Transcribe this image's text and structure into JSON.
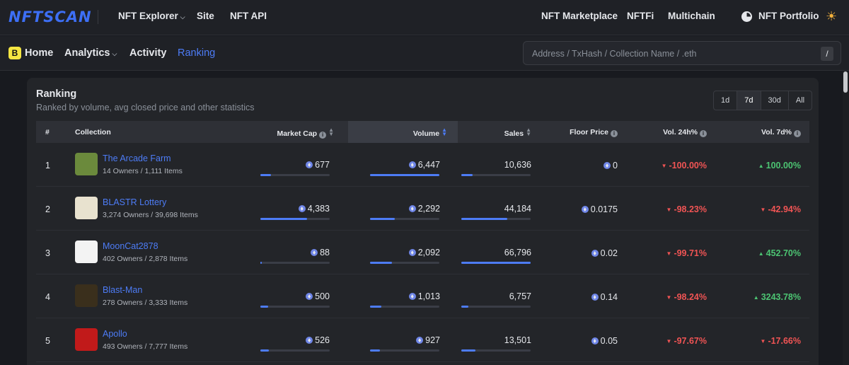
{
  "topbar": {
    "logo": "NFTSCAN",
    "nav_left": [
      {
        "label": "NFT Explorer",
        "has_dropdown": true
      },
      {
        "label": "Site"
      },
      {
        "label": "NFT API"
      }
    ],
    "nav_right": [
      {
        "label": "NFT Marketplace"
      },
      {
        "label": "NFTFi"
      },
      {
        "label": "Multichain"
      },
      {
        "label": "NFT Portfolio",
        "icon": "pie-chart-icon"
      }
    ],
    "theme_icon": "sun-icon"
  },
  "subnav": {
    "chain_icon": "blast-logo-icon",
    "items": [
      {
        "label": "Home"
      },
      {
        "label": "Analytics",
        "has_dropdown": true
      },
      {
        "label": "Activity"
      },
      {
        "label": "Ranking",
        "active": true
      }
    ],
    "search": {
      "placeholder": "Address / TxHash / Collection Name / .eth",
      "value": "",
      "shortcut": "/"
    }
  },
  "ranking": {
    "title": "Ranking",
    "subtitle": "Ranked by volume, avg closed price and other statistics",
    "periods": [
      {
        "label": "1d"
      },
      {
        "label": "7d",
        "active": true
      },
      {
        "label": "30d"
      },
      {
        "label": "All"
      }
    ],
    "columns": [
      "#",
      "Collection",
      "Market Cap",
      "Volume",
      "Sales",
      "Floor Price",
      "Vol. 24h%",
      "Vol. 7d%"
    ],
    "rows": [
      {
        "rank": "1",
        "name": "The Arcade Farm",
        "meta": "14 Owners / 1,111 Items",
        "market_cap": "677",
        "mc_level": 0.15,
        "volume": "6,447",
        "vol_level": 1.0,
        "sales": "10,636",
        "sales_level": 0.16,
        "floor": "0",
        "vol24": "-100.00%",
        "vol24_dir": "down",
        "vol7": "100.00%",
        "vol7_dir": "up",
        "thumb_color": "#6b8a3c"
      },
      {
        "rank": "2",
        "name": "BLASTR Lottery",
        "meta": "3,274 Owners / 39,698 Items",
        "market_cap": "4,383",
        "mc_level": 0.67,
        "volume": "2,292",
        "vol_level": 0.36,
        "sales": "44,184",
        "sales_level": 0.66,
        "floor": "0.0175",
        "vol24": "-98.23%",
        "vol24_dir": "down",
        "vol7": "-42.94%",
        "vol7_dir": "down",
        "thumb_color": "#e8e2cf"
      },
      {
        "rank": "3",
        "name": "MoonCat2878",
        "meta": "402 Owners / 2,878 Items",
        "market_cap": "88",
        "mc_level": 0.02,
        "volume": "2,092",
        "vol_level": 0.32,
        "sales": "66,796",
        "sales_level": 1.0,
        "floor": "0.02",
        "vol24": "-99.71%",
        "vol24_dir": "down",
        "vol7": "452.70%",
        "vol7_dir": "up",
        "thumb_color": "#f3f3f3"
      },
      {
        "rank": "4",
        "name": "Blast-Man",
        "meta": "278 Owners / 3,333 Items",
        "market_cap": "500",
        "mc_level": 0.11,
        "volume": "1,013",
        "vol_level": 0.16,
        "sales": "6,757",
        "sales_level": 0.1,
        "floor": "0.14",
        "vol24": "-98.24%",
        "vol24_dir": "down",
        "vol7": "3243.78%",
        "vol7_dir": "up",
        "thumb_color": "#3a2f1c"
      },
      {
        "rank": "5",
        "name": "Apollo",
        "meta": "493 Owners / 7,777 Items",
        "market_cap": "526",
        "mc_level": 0.12,
        "volume": "927",
        "vol_level": 0.14,
        "sales": "13,501",
        "sales_level": 0.2,
        "floor": "0.05",
        "vol24": "-97.67%",
        "vol24_dir": "down",
        "vol7": "-17.66%",
        "vol7_dir": "down",
        "thumb_color": "#c11a1a"
      }
    ]
  }
}
